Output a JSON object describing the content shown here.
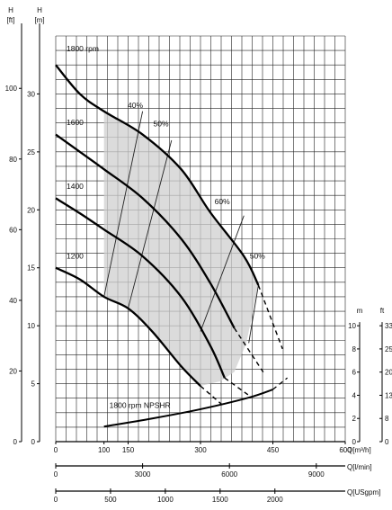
{
  "chart_data": {
    "type": "line",
    "left_axes": [
      {
        "unit": "H",
        "unit2": "[ft]",
        "ticks": [
          0,
          20,
          40,
          60,
          80,
          100
        ]
      },
      {
        "unit": "H",
        "unit2": "[m]",
        "ticks": [
          0,
          5,
          10,
          15,
          20,
          25,
          30
        ]
      }
    ],
    "right_axes": [
      {
        "unit": "m",
        "ticks": [
          0,
          2,
          4,
          6,
          8,
          10
        ]
      },
      {
        "unit": "ft",
        "ticks": [
          0,
          8,
          13,
          20,
          25,
          33
        ]
      }
    ],
    "bottom_axes": [
      {
        "unit": "Q[m³/h]",
        "ticks": [
          0,
          100,
          150,
          300,
          450,
          600
        ]
      },
      {
        "unit": "Q[l/min]",
        "ticks": [
          0,
          3000,
          6000,
          9000
        ]
      },
      {
        "unit": "Q[USgpm]",
        "ticks": [
          0,
          500,
          1000,
          1500,
          2000
        ]
      }
    ],
    "xlim": [
      0,
      600
    ],
    "ylim": [
      0,
      35
    ],
    "grid": true,
    "series": [
      {
        "name": "1800 rpm",
        "points": [
          [
            0,
            32.5
          ],
          [
            50,
            30
          ],
          [
            100,
            28.5
          ],
          [
            180,
            26.5
          ],
          [
            260,
            23.5
          ],
          [
            320,
            19.8
          ],
          [
            390,
            16
          ],
          [
            420,
            13.5
          ]
        ]
      },
      {
        "name": "1600",
        "points": [
          [
            0,
            26.5
          ],
          [
            50,
            25
          ],
          [
            100,
            23.5
          ],
          [
            180,
            21
          ],
          [
            260,
            17.5
          ],
          [
            320,
            13.7
          ],
          [
            370,
            9.8
          ]
        ]
      },
      {
        "name": "1400",
        "points": [
          [
            0,
            21
          ],
          [
            50,
            19.7
          ],
          [
            100,
            18.3
          ],
          [
            180,
            16
          ],
          [
            260,
            12.5
          ],
          [
            320,
            8.3
          ],
          [
            350,
            5.5
          ]
        ]
      },
      {
        "name": "1200",
        "points": [
          [
            0,
            15
          ],
          [
            50,
            14
          ],
          [
            100,
            12.5
          ],
          [
            150,
            11.5
          ],
          [
            200,
            9.5
          ],
          [
            260,
            6.5
          ],
          [
            300,
            4.8
          ]
        ]
      }
    ],
    "extensions": [
      [
        [
          420,
          13.5
        ],
        [
          470,
          8
        ]
      ],
      [
        [
          370,
          9.8
        ],
        [
          430,
          6
        ]
      ],
      [
        [
          350,
          5.5
        ],
        [
          400,
          4
        ]
      ],
      [
        [
          300,
          4.8
        ],
        [
          350,
          3
        ]
      ]
    ],
    "efficiency_labels": [
      "40%",
      "50%",
      "60%",
      "50%"
    ],
    "npsh_curve": {
      "name": "1800 rpm NPSHR",
      "points": [
        [
          100,
          1.3
        ],
        [
          200,
          2.0
        ],
        [
          300,
          2.8
        ],
        [
          400,
          3.8
        ],
        [
          450,
          4.5
        ]
      ]
    },
    "npsh_extension": [
      [
        450,
        4.5
      ],
      [
        480,
        5.5
      ]
    ]
  }
}
